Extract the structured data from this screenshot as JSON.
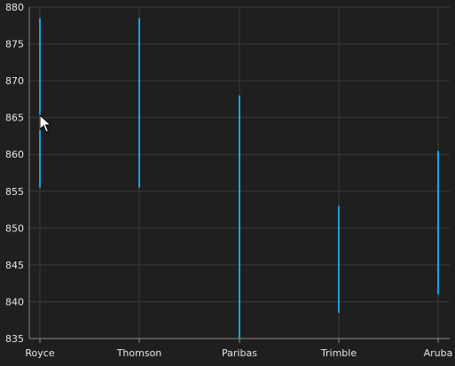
{
  "chart_data": {
    "type": "range-bar",
    "categories": [
      "Royce",
      "Thomson",
      "Paribas",
      "Trimble",
      "Aruba"
    ],
    "series": [
      {
        "low": [
          855.5,
          855.5,
          835.0,
          838.5,
          841.0
        ],
        "high": [
          878.5,
          878.5,
          868.0,
          853.0,
          860.5
        ]
      }
    ],
    "ylim": [
      835,
      880
    ],
    "yticks": [
      835,
      840,
      845,
      850,
      855,
      860,
      865,
      870,
      875,
      880
    ],
    "grid": true,
    "colors": {
      "background": "#1f1f1f",
      "grid": "#3b3b3b",
      "axis": "#8a8a8a",
      "text": "#e6e6e6",
      "series": "#1ba1e2"
    }
  },
  "cursor": {
    "icon": "mouse-pointer-icon"
  }
}
